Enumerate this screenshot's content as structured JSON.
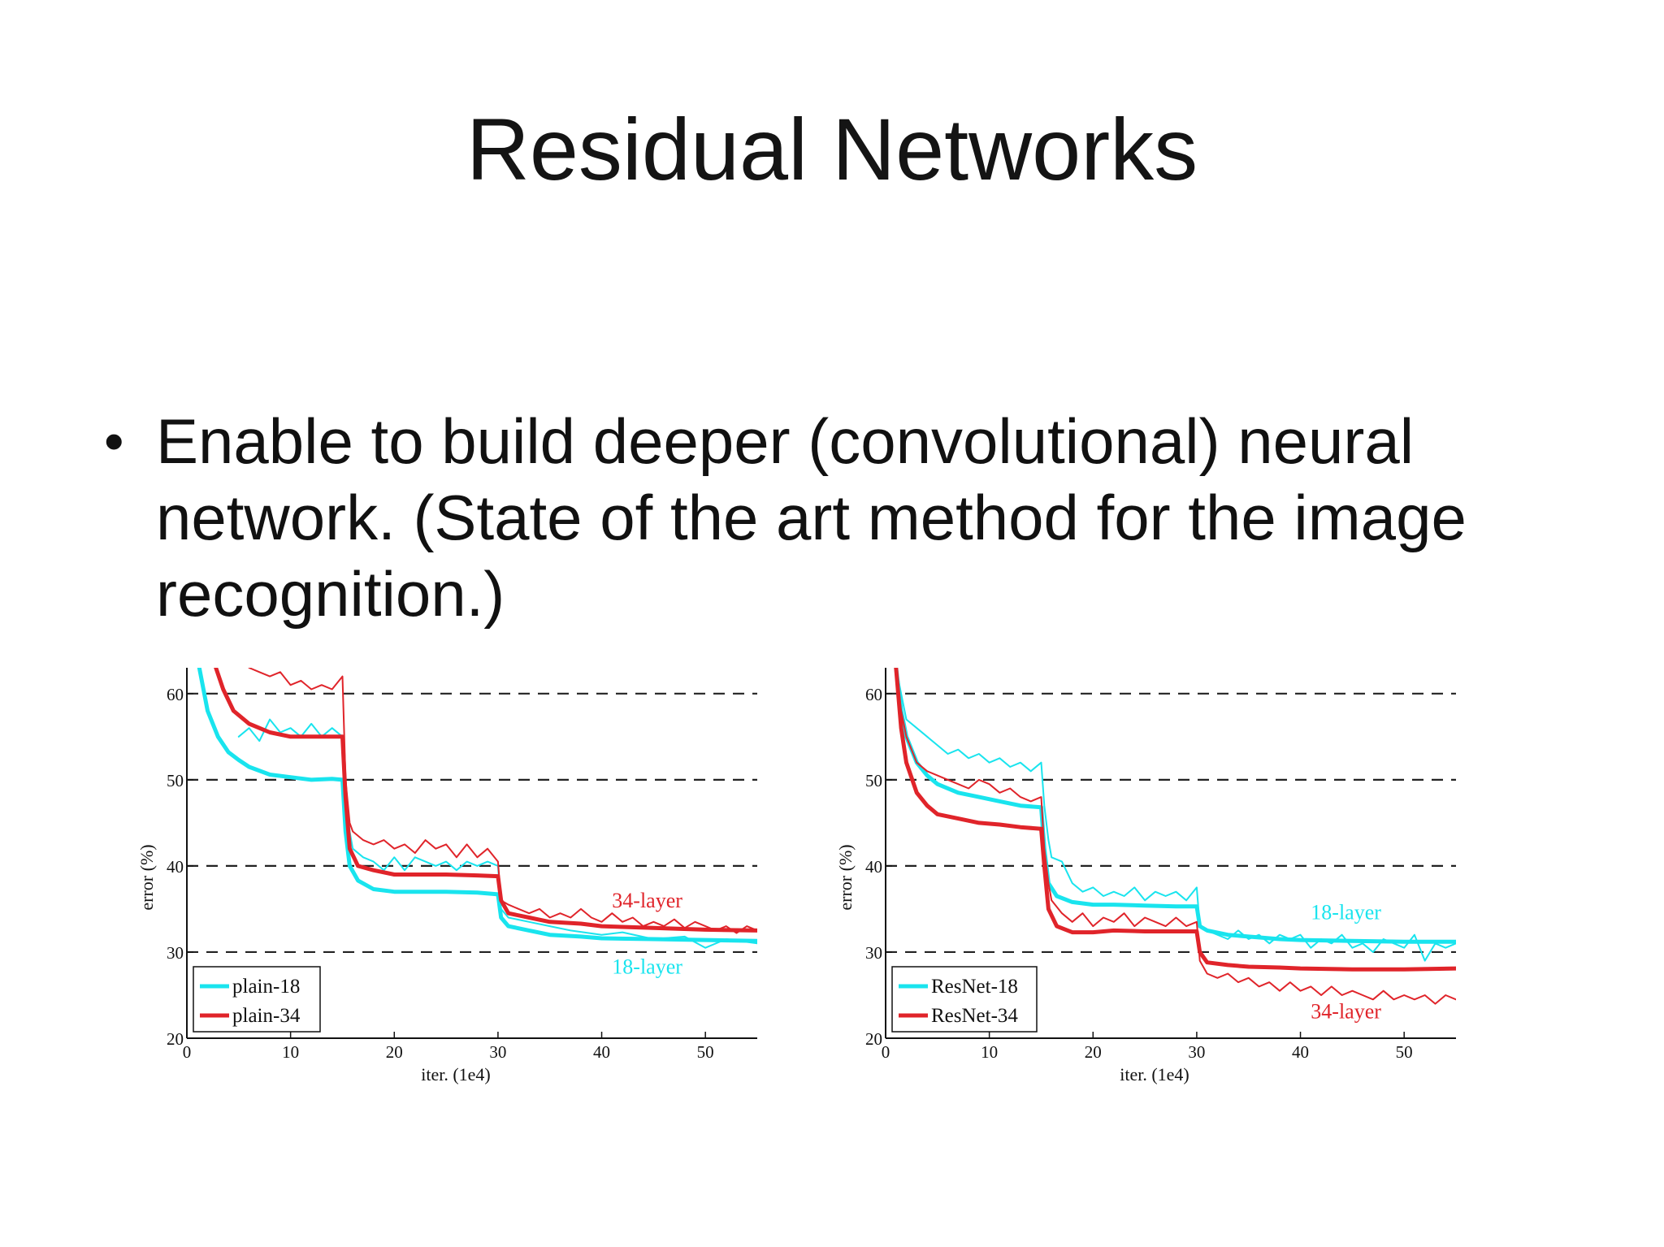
{
  "slide": {
    "title": "Residual Networks",
    "bullet_symbol": "•",
    "bullet_text": "Enable to build deeper (convolutional) neural network.  (State of the art method for the image recognition.)"
  },
  "colors": {
    "cyan": "#19e4ee",
    "red": "#e0242a"
  },
  "chart_data": [
    {
      "type": "line",
      "title": "",
      "xlabel": "iter. (1e4)",
      "ylabel": "error (%)",
      "xlim": [
        0,
        55
      ],
      "ylim": [
        20,
        63
      ],
      "xticks": [
        0,
        10,
        20,
        30,
        40,
        50
      ],
      "yticks": [
        20,
        30,
        40,
        50,
        60
      ],
      "grid": "dashed horizontal at 30, 40, 50, 60",
      "legend": {
        "position": "bottom-left",
        "entries": [
          {
            "label": "plain-18",
            "color": "#19e4ee"
          },
          {
            "label": "plain-34",
            "color": "#e0242a"
          }
        ]
      },
      "annotations": [
        {
          "text": "34-layer",
          "color": "#e0242a"
        },
        {
          "text": "18-layer",
          "color": "#19e4ee"
        }
      ],
      "series": [
        {
          "name": "plain-18",
          "kind": "train",
          "color": "#19e4ee",
          "x": [
            1.2,
            2,
            3,
            4,
            5,
            6,
            8,
            10,
            12,
            14,
            15,
            15.3,
            15.7,
            16.5,
            18,
            20,
            22,
            25,
            28,
            30,
            30.3,
            31,
            33,
            35,
            38,
            40,
            45,
            50,
            55
          ],
          "y": [
            63,
            58,
            55,
            53.2,
            52.3,
            51.5,
            50.6,
            50.3,
            50,
            50.1,
            50,
            44,
            40,
            38.3,
            37.3,
            37,
            37,
            37,
            36.9,
            36.7,
            34,
            33,
            32.5,
            32,
            31.8,
            31.6,
            31.5,
            31.4,
            31.3
          ]
        },
        {
          "name": "plain-18",
          "kind": "val",
          "color": "#19e4ee",
          "x": [
            5,
            6,
            7,
            8,
            9,
            10,
            11,
            12,
            13,
            14,
            15,
            15.3,
            15.7,
            16,
            17,
            18,
            19,
            20,
            21,
            22,
            23,
            24,
            25,
            26,
            27,
            28,
            29,
            30,
            30.3,
            31,
            33,
            35,
            37,
            40,
            42,
            45,
            48,
            50,
            52,
            55
          ],
          "y": [
            55,
            56,
            54.5,
            57,
            55.5,
            56,
            55,
            56.5,
            55,
            56,
            55,
            50,
            44,
            42,
            41,
            40.5,
            39.5,
            41,
            39.5,
            41,
            40.5,
            40,
            40.5,
            39.5,
            40.5,
            40,
            40.5,
            40,
            35,
            34,
            33.5,
            33,
            32.5,
            32,
            32.3,
            31.5,
            31.8,
            30.5,
            31.5,
            31
          ]
        },
        {
          "name": "plain-34",
          "kind": "train",
          "color": "#e0242a",
          "x": [
            2.8,
            3.5,
            4.5,
            6,
            8,
            10,
            12,
            14,
            15,
            15.3,
            15.7,
            16.5,
            18,
            20,
            22,
            25,
            28,
            30,
            30.3,
            31,
            33,
            35,
            38,
            40,
            45,
            50,
            55
          ],
          "y": [
            63,
            60.5,
            58,
            56.5,
            55.5,
            55,
            55,
            55,
            55,
            48,
            42,
            40,
            39.5,
            39,
            39,
            39,
            38.9,
            38.8,
            36,
            34.5,
            34,
            33.5,
            33.3,
            33,
            32.8,
            32.6,
            32.5
          ]
        },
        {
          "name": "plain-34",
          "kind": "val",
          "color": "#e0242a",
          "x": [
            6,
            7,
            8,
            9,
            10,
            11,
            12,
            13,
            14,
            15,
            15.3,
            15.7,
            16,
            17,
            18,
            19,
            20,
            21,
            22,
            23,
            24,
            25,
            26,
            27,
            28,
            29,
            30,
            30.3,
            31,
            32,
            33,
            34,
            35,
            36,
            37,
            38,
            39,
            40,
            41,
            42,
            43,
            44,
            45,
            46,
            47,
            48,
            49,
            50,
            51,
            52,
            53,
            54,
            55
          ],
          "y": [
            63,
            62.5,
            62,
            62.5,
            61,
            61.5,
            60.5,
            61,
            60.5,
            62,
            50,
            45,
            44,
            43,
            42.5,
            43,
            42,
            42.5,
            41.5,
            43,
            42,
            42.5,
            41,
            42.5,
            41,
            42,
            40.5,
            36,
            35.5,
            35,
            34.5,
            35,
            34,
            34.5,
            34,
            35,
            34,
            33.5,
            34.5,
            33.5,
            34,
            33,
            33.5,
            33,
            33.8,
            32.8,
            33.5,
            33,
            32.5,
            33,
            32.2,
            33,
            32.5
          ]
        }
      ]
    },
    {
      "type": "line",
      "title": "",
      "xlabel": "iter. (1e4)",
      "ylabel": "error (%)",
      "xlim": [
        0,
        55
      ],
      "ylim": [
        20,
        63
      ],
      "xticks": [
        0,
        10,
        20,
        30,
        40,
        50
      ],
      "yticks": [
        20,
        30,
        40,
        50,
        60
      ],
      "grid": "dashed horizontal at 30, 40, 50, 60",
      "legend": {
        "position": "bottom-left",
        "entries": [
          {
            "label": "ResNet-18",
            "color": "#19e4ee"
          },
          {
            "label": "ResNet-34",
            "color": "#e0242a"
          }
        ]
      },
      "annotations": [
        {
          "text": "18-layer",
          "color": "#19e4ee"
        },
        {
          "text": "34-layer",
          "color": "#e0242a"
        }
      ],
      "series": [
        {
          "name": "ResNet-18",
          "kind": "train",
          "color": "#19e4ee",
          "x": [
            1,
            1.5,
            2,
            3,
            4,
            5,
            7,
            9,
            11,
            13,
            15,
            15.3,
            15.7,
            16.5,
            18,
            20,
            22,
            25,
            28,
            30,
            30.3,
            31,
            33,
            35,
            38,
            40,
            45,
            50,
            55
          ],
          "y": [
            63,
            58,
            55,
            52,
            50.5,
            49.5,
            48.5,
            48,
            47.5,
            47,
            46.8,
            42,
            38,
            36.5,
            35.8,
            35.5,
            35.5,
            35.4,
            35.3,
            35.3,
            33,
            32.5,
            32,
            31.8,
            31.5,
            31.4,
            31.3,
            31.2,
            31.2
          ]
        },
        {
          "name": "ResNet-18",
          "kind": "val",
          "color": "#19e4ee",
          "x": [
            1,
            1.5,
            2,
            3,
            4,
            5,
            6,
            7,
            8,
            9,
            10,
            11,
            12,
            13,
            14,
            15,
            15.3,
            15.7,
            16,
            17,
            18,
            19,
            20,
            21,
            22,
            23,
            24,
            25,
            26,
            27,
            28,
            29,
            30,
            30.3,
            31,
            32,
            33,
            34,
            35,
            36,
            37,
            38,
            39,
            40,
            41,
            42,
            43,
            44,
            45,
            46,
            47,
            48,
            49,
            50,
            51,
            52,
            53,
            54,
            55
          ],
          "y": [
            63,
            60,
            57,
            56,
            55,
            54,
            53,
            53.5,
            52.5,
            53,
            52,
            52.5,
            51.5,
            52,
            51,
            52,
            47,
            43,
            41,
            40.5,
            38,
            37,
            37.5,
            36.5,
            37,
            36.5,
            37.5,
            36,
            37,
            36.5,
            37,
            36,
            37.5,
            33,
            32.5,
            32,
            31.5,
            32.5,
            31.5,
            32,
            31,
            32,
            31.5,
            32,
            30.5,
            31.5,
            31,
            32,
            30.5,
            31,
            30,
            31.5,
            31,
            30.5,
            32,
            29,
            31,
            30.5,
            31
          ]
        },
        {
          "name": "ResNet-34",
          "kind": "train",
          "color": "#e0242a",
          "x": [
            1,
            1.5,
            2,
            3,
            4,
            5,
            7,
            9,
            11,
            13,
            15,
            15.3,
            15.7,
            16.5,
            18,
            20,
            22,
            25,
            28,
            30,
            30.3,
            31,
            33,
            35,
            38,
            40,
            45,
            50,
            55
          ],
          "y": [
            63,
            56,
            52,
            48.5,
            47,
            46,
            45.5,
            45,
            44.8,
            44.5,
            44.3,
            40,
            35,
            33,
            32.3,
            32.3,
            32.5,
            32.4,
            32.4,
            32.4,
            30,
            28.8,
            28.5,
            28.3,
            28.2,
            28.1,
            28,
            28,
            28.1
          ]
        },
        {
          "name": "ResNet-34",
          "kind": "val",
          "color": "#e0242a",
          "x": [
            1,
            1.5,
            2,
            3,
            4,
            5,
            6,
            7,
            8,
            9,
            10,
            11,
            12,
            13,
            14,
            15,
            15.3,
            15.7,
            16,
            17,
            18,
            19,
            20,
            21,
            22,
            23,
            24,
            25,
            26,
            27,
            28,
            29,
            30,
            30.3,
            31,
            32,
            33,
            34,
            35,
            36,
            37,
            38,
            39,
            40,
            41,
            42,
            43,
            44,
            45,
            46,
            47,
            48,
            49,
            50,
            51,
            52,
            53,
            54,
            55
          ],
          "y": [
            63,
            58,
            55,
            52,
            51,
            50.5,
            50,
            49.5,
            49,
            50,
            49.5,
            48.5,
            49,
            48,
            47.5,
            48,
            42,
            38,
            36,
            34.5,
            33.5,
            34.5,
            33,
            34,
            33.5,
            34.5,
            33,
            34,
            33.5,
            33,
            34,
            33,
            33.5,
            29,
            27.5,
            27,
            27.5,
            26.5,
            27,
            26,
            26.5,
            25.5,
            26.5,
            25.5,
            26,
            25,
            26,
            25,
            25.5,
            25,
            24.5,
            25.5,
            24.5,
            25,
            24.5,
            25,
            24,
            25,
            24.5
          ]
        }
      ]
    }
  ]
}
